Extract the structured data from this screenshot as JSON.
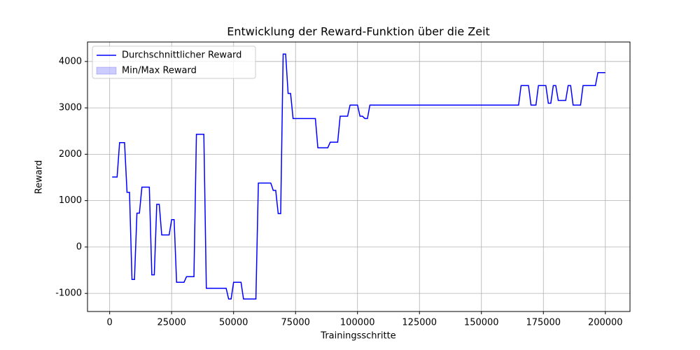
{
  "chart_data": {
    "type": "line",
    "title": "Entwicklung der Reward-Funktion über die Zeit",
    "x_label": "Trainingsschritte",
    "y_label": "Reward",
    "x": [
      1000,
      3000,
      4000,
      6000,
      7000,
      8000,
      9000,
      10000,
      11000,
      12000,
      13000,
      16000,
      17000,
      18000,
      19000,
      20000,
      21000,
      24000,
      25000,
      26000,
      27000,
      30000,
      31000,
      34000,
      35000,
      38000,
      39000,
      47000,
      48000,
      49000,
      50000,
      53000,
      54000,
      59000,
      60000,
      65000,
      66000,
      67000,
      68000,
      69000,
      70000,
      71000,
      72000,
      73000,
      74000,
      83000,
      84000,
      88000,
      89000,
      92000,
      93000,
      96000,
      97000,
      100000,
      101000,
      102000,
      103000,
      104000,
      105000,
      165000,
      166000,
      169000,
      170000,
      172000,
      173000,
      176000,
      177000,
      178000,
      179000,
      180000,
      181000,
      184000,
      185000,
      186000,
      187000,
      190000,
      191000,
      196000,
      197000,
      200000
    ],
    "series": [
      {
        "name": "Durchschnittlicher Reward",
        "color": "#0000ff",
        "values": [
          1510,
          1510,
          2250,
          2250,
          1180,
          1180,
          -700,
          -700,
          730,
          730,
          1290,
          1290,
          -600,
          -600,
          920,
          920,
          260,
          260,
          590,
          590,
          -760,
          -760,
          -640,
          -640,
          2430,
          2430,
          -890,
          -890,
          -1120,
          -1120,
          -760,
          -760,
          -1120,
          -1120,
          1380,
          1380,
          1220,
          1220,
          720,
          720,
          4160,
          4160,
          3310,
          3310,
          2770,
          2770,
          2140,
          2140,
          2260,
          2260,
          2820,
          2820,
          3060,
          3060,
          2820,
          2820,
          2770,
          2770,
          3060,
          3060,
          3480,
          3480,
          3060,
          3060,
          3480,
          3480,
          3100,
          3100,
          3480,
          3480,
          3160,
          3160,
          3480,
          3480,
          3060,
          3060,
          3480,
          3480,
          3760,
          3760
        ]
      }
    ],
    "band": {
      "name": "Min/Max Reward",
      "color": "#0000ff"
    },
    "xlim": [
      -8950,
      209950
    ],
    "ylim": [
      -1390,
      4420
    ],
    "xticks": [
      0,
      25000,
      50000,
      75000,
      100000,
      125000,
      150000,
      175000,
      200000
    ],
    "yticks": [
      -1000,
      0,
      1000,
      2000,
      3000,
      4000
    ],
    "grid": true,
    "legend": "upper left"
  }
}
